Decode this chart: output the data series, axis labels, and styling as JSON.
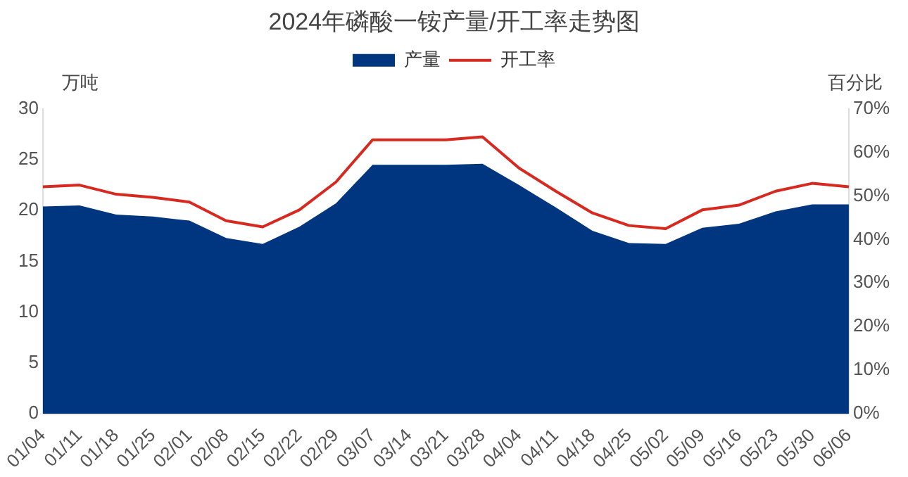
{
  "chart_data": {
    "type": "area",
    "title": "2024年磷酸一铵产量/开工率走势图",
    "ylabel": "万吨",
    "y2label": "百分比",
    "categories": [
      "01/04",
      "01/11",
      "01/18",
      "01/25",
      "02/01",
      "02/08",
      "02/15",
      "02/22",
      "02/29",
      "03/07",
      "03/14",
      "03/21",
      "03/28",
      "04/04",
      "04/11",
      "04/18",
      "04/25",
      "05/02",
      "05/09",
      "05/16",
      "05/23",
      "05/30",
      "06/06"
    ],
    "series": [
      {
        "name": "产量",
        "color": "#003580",
        "values": [
          20.4,
          20.5,
          19.6,
          19.4,
          19.0,
          17.3,
          16.7,
          18.4,
          20.7,
          24.5,
          24.5,
          24.5,
          24.6,
          22.5,
          20.3,
          18.0,
          16.8,
          16.7,
          18.3,
          18.7,
          19.9,
          20.6,
          20.6
        ]
      },
      {
        "name": "开工率",
        "type": "line",
        "axis": "y2",
        "color": "#d7291f",
        "values": [
          52.1,
          52.5,
          50.4,
          49.7,
          48.6,
          44.3,
          42.9,
          46.8,
          53.2,
          62.9,
          62.9,
          62.9,
          63.6,
          56.4,
          51.1,
          46.1,
          43.2,
          42.5,
          46.8,
          47.9,
          51.1,
          52.9,
          52.1
        ]
      }
    ],
    "ylim": [
      0,
      30
    ],
    "yticks": [
      0,
      5,
      10,
      15,
      20,
      25,
      30
    ],
    "y2lim": [
      0,
      70
    ],
    "y2ticks": [
      {
        "value": 0,
        "label": "0%"
      },
      {
        "value": 10,
        "label": "10%"
      },
      {
        "value": 20,
        "label": "20%"
      },
      {
        "value": 30,
        "label": "30%"
      },
      {
        "value": 40,
        "label": "40%"
      },
      {
        "value": 50,
        "label": "50%"
      },
      {
        "value": 60,
        "label": "60%"
      },
      {
        "value": 70,
        "label": "70%"
      }
    ],
    "grid": false,
    "legend": "top"
  }
}
